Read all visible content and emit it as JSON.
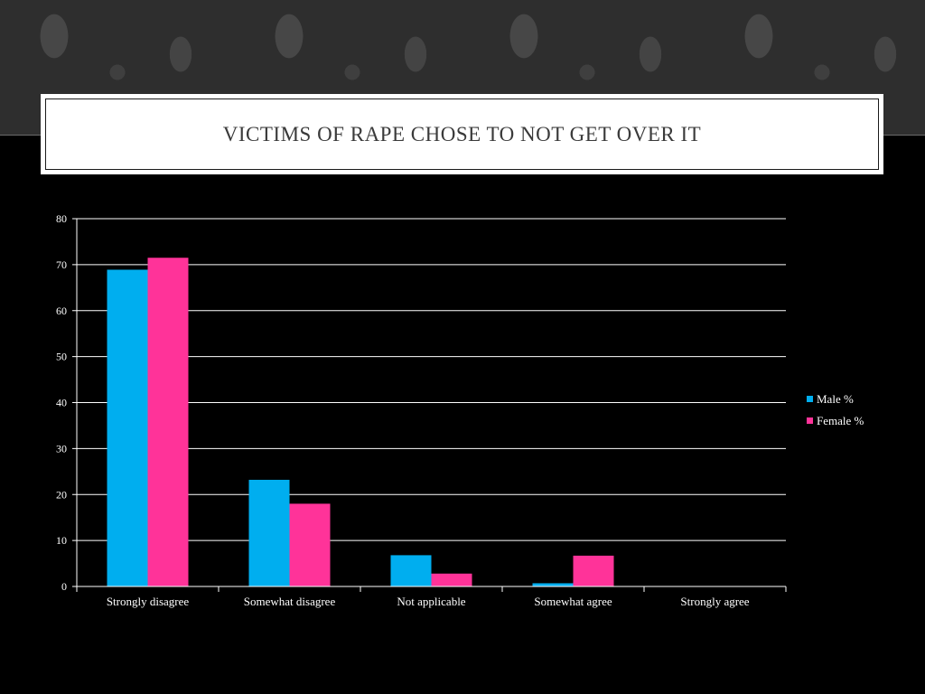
{
  "slide": {
    "title": "Victims of rape chose to not get over it"
  },
  "colors": {
    "background": "#000000",
    "male": "#00aeef",
    "female": "#ff3399",
    "text": "#ffffff",
    "gridline": "#ffffff",
    "title_text": "#3a3a3a"
  },
  "chart_data": {
    "type": "bar",
    "title": "",
    "xlabel": "",
    "ylabel": "",
    "categories": [
      "Strongly disagree",
      "Somewhat disagree",
      "Not applicable",
      "Somewhat agree",
      "Strongly agree"
    ],
    "series": [
      {
        "name": "Male %",
        "color": "#00aeef",
        "values": [
          68.9,
          23.2,
          6.8,
          0.7,
          0
        ]
      },
      {
        "name": "Female %",
        "color": "#ff3399",
        "values": [
          71.5,
          18.0,
          2.8,
          6.7,
          0
        ]
      }
    ],
    "ylim": [
      0,
      80
    ],
    "yticks": [
      0,
      10,
      20,
      30,
      40,
      50,
      60,
      70,
      80
    ],
    "grid": true,
    "legend_position": "right"
  }
}
